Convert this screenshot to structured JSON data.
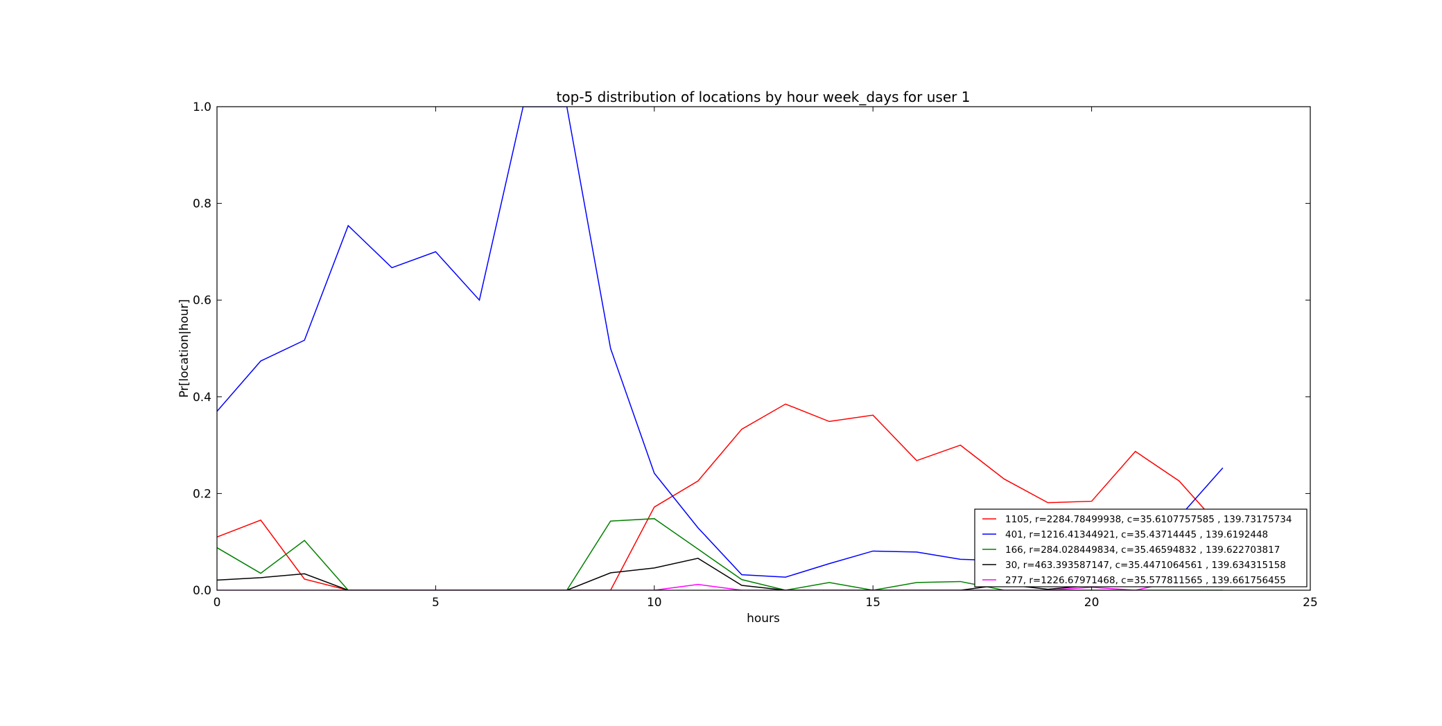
{
  "chart_data": {
    "type": "line",
    "title": "top-5 distribution of locations by hour week_days for user 1",
    "xlabel": "hours",
    "ylabel": "Pr[location|hour]",
    "xlim": [
      0,
      25
    ],
    "ylim": [
      0,
      1.0
    ],
    "xticks": [
      0,
      5,
      10,
      15,
      20,
      25
    ],
    "xtick_labels": [
      "0",
      "5",
      "10",
      "15",
      "20",
      "25"
    ],
    "yticks": [
      0,
      0.2,
      0.4,
      0.6,
      0.8,
      1.0
    ],
    "ytick_labels": [
      "0.0",
      "0.2",
      "0.4",
      "0.6",
      "0.8",
      "1.0"
    ],
    "grid": false,
    "legend_position": "lower-right",
    "x": [
      0,
      1,
      2,
      3,
      4,
      5,
      6,
      7,
      8,
      9,
      10,
      11,
      12,
      13,
      14,
      15,
      16,
      17,
      18,
      19,
      20,
      21,
      22,
      23
    ],
    "series": [
      {
        "name": "1105, r=2284.78499938, c=35.6107757585 , 139.73175734",
        "color": "#ff0000",
        "values": [
          0.11,
          0.145,
          0.023,
          0,
          0,
          0,
          0,
          0,
          0,
          0,
          0.172,
          0.226,
          0.333,
          0.385,
          0.349,
          0.362,
          0.268,
          0.3,
          0.23,
          0.181,
          0.184,
          0.287,
          0.226,
          0.125
        ]
      },
      {
        "name": "401, r=1216.41344921, c=35.43714445 , 139.6192448",
        "color": "#0000ff",
        "values": [
          0.37,
          0.474,
          0.517,
          0.754,
          0.667,
          0.7,
          0.6,
          1.0,
          1.0,
          0.5,
          0.242,
          0.129,
          0.032,
          0.027,
          0.055,
          0.081,
          0.079,
          0.064,
          0.061,
          0.035,
          0.043,
          0.06,
          0.151,
          0.253
        ]
      },
      {
        "name": "166, r=284.028449834, c=35.46594832 , 139.622703817",
        "color": "#008000",
        "values": [
          0.088,
          0.035,
          0.103,
          0,
          0,
          0,
          0,
          0,
          0,
          0.143,
          0.148,
          0.085,
          0.022,
          0,
          0.016,
          0,
          0.016,
          0.018,
          0,
          0,
          0,
          0,
          0,
          0
        ]
      },
      {
        "name": "30, r=463.393587147, c=35.4471064561 , 139.634315158",
        "color": "#000000",
        "values": [
          0.021,
          0.026,
          0.034,
          0,
          0,
          0,
          0,
          0,
          0,
          0.036,
          0.046,
          0.066,
          0.01,
          0,
          0,
          0,
          0,
          0,
          0.012,
          0.002,
          0.01,
          0.008,
          0.012,
          0.008
        ]
      },
      {
        "name": "277, r=1226.67971468, c=35.577811565 , 139.661756455",
        "color": "#ff00ff",
        "values": [
          0,
          0,
          0,
          0,
          0,
          0,
          0,
          0,
          0,
          0,
          0,
          0.012,
          0,
          0,
          0,
          0,
          0,
          0,
          0,
          0,
          0.006,
          0,
          0.02,
          0.018
        ]
      }
    ]
  }
}
